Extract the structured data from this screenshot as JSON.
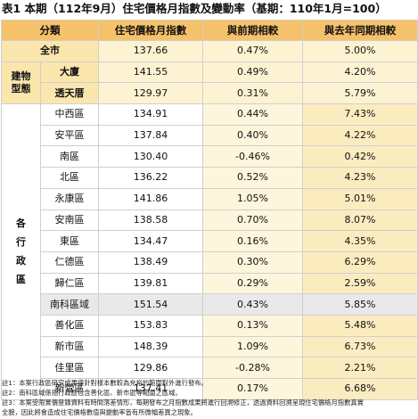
{
  "title": "表1 本期（112年9月）住宅價格月指數及變動率（基期：110年1月=100）",
  "headers": [
    "分類",
    "住宅價格月指數",
    "與前期相較",
    "與去年同期相較"
  ],
  "city": {
    "label": "全市",
    "index": "137.66",
    "mom": "0.47%",
    "yoy": "5.00%"
  },
  "building_category": "建物型態",
  "building_category_lines": [
    "建物",
    "型態"
  ],
  "building": [
    {
      "label": "大廈",
      "index": "141.55",
      "mom": "0.49%",
      "yoy": "4.20%"
    },
    {
      "label": "透天厝",
      "index": "129.97",
      "mom": "0.31%",
      "yoy": "5.79%"
    }
  ],
  "district_category": "各行政區",
  "district_category_chars": [
    "各",
    "行",
    "政",
    "區"
  ],
  "districts": [
    {
      "label": "中西區",
      "index": "134.91",
      "mom": "0.44%",
      "yoy": "7.43%"
    },
    {
      "label": "安平區",
      "index": "137.84",
      "mom": "0.40%",
      "yoy": "4.22%"
    },
    {
      "label": "南區",
      "index": "130.40",
      "mom": "-0.46%",
      "yoy": "0.42%"
    },
    {
      "label": "北區",
      "index": "136.22",
      "mom": "0.52%",
      "yoy": "4.23%"
    },
    {
      "label": "永康區",
      "index": "141.86",
      "mom": "1.05%",
      "yoy": "5.01%"
    },
    {
      "label": "安南區",
      "index": "138.58",
      "mom": "0.70%",
      "yoy": "8.07%"
    },
    {
      "label": "東區",
      "index": "134.47",
      "mom": "0.16%",
      "yoy": "4.35%"
    },
    {
      "label": "仁德區",
      "index": "138.49",
      "mom": "0.30%",
      "yoy": "6.29%"
    },
    {
      "label": "歸仁區",
      "index": "139.81",
      "mom": "0.29%",
      "yoy": "2.59%"
    },
    {
      "label": "南科區域",
      "index": "151.54",
      "mom": "0.43%",
      "yoy": "5.85%",
      "highlight": true
    },
    {
      "label": "善化區",
      "index": "153.83",
      "mom": "0.13%",
      "yoy": "5.48%"
    },
    {
      "label": "新市區",
      "index": "148.39",
      "mom": "1.09%",
      "yoy": "6.73%"
    },
    {
      "label": "佳里區",
      "index": "129.86",
      "mom": "-0.28%",
      "yoy": "2.21%"
    },
    {
      "label": "新營區",
      "index": "137.41",
      "mom": "0.17%",
      "yoy": "6.68%"
    }
  ],
  "notes": [
    "註1：本案行政區研究成果僅針對樣本數較為充裕的範圍對外進行發布。",
    "註2：南科區域係指行政區包含善化區、新市區等範圍之區域。",
    "註3：本案受限實價登錄資料有時間落差情形，每期發布之月指數成果將進行回溯修正，透過資料回溯呈現住宅價格月指數真實",
    "全貌，因此將會造成住宅價格數值與變動率皆有所微幅差異之現象。"
  ]
}
